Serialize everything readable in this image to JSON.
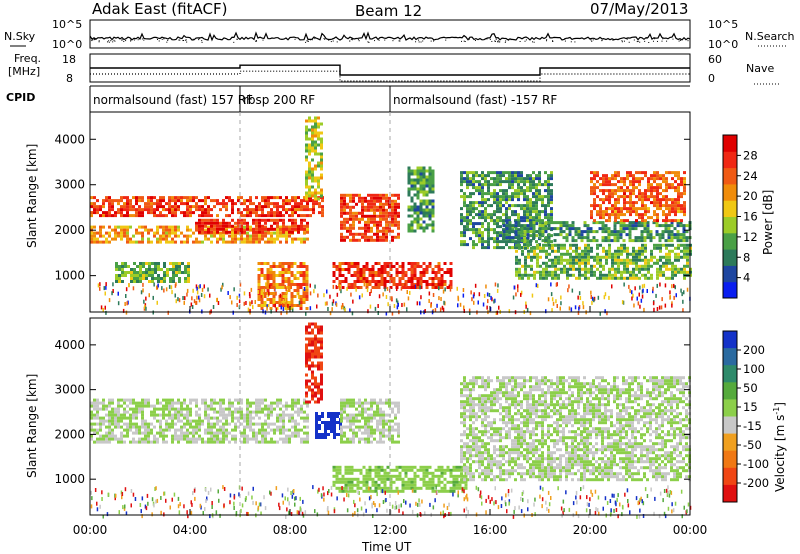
{
  "header": {
    "title": "Adak East (fitACF)",
    "beam": "Beam 12",
    "date": "07/May/2013"
  },
  "noise_panel": {
    "left_label": "N.Sky",
    "right_label": "N.Search",
    "left_ticks": [
      "10^5",
      "10^0"
    ],
    "right_ticks": [
      "10^5",
      "10^0"
    ]
  },
  "freq_panel": {
    "left_label_line1": "Freq.",
    "left_label_line2": "[MHz]",
    "right_label": "Nave",
    "left_ticks": [
      "18",
      "8"
    ],
    "right_ticks": [
      "60",
      "0"
    ]
  },
  "cpid": {
    "label": "CPID",
    "segments": [
      {
        "start_hour": 0,
        "end_hour": 6,
        "label": "normalsound (fast) 157 RF"
      },
      {
        "start_hour": 6,
        "end_hour": 12,
        "label": "rbsp 200 RF"
      },
      {
        "start_hour": 12,
        "end_hour": 24,
        "label": "normalsound (fast) -157 RF"
      }
    ]
  },
  "axes": {
    "ylabel": "Slant Range [km]",
    "xlabel": "Time UT",
    "x_ticks": [
      "00:00",
      "04:00",
      "08:00",
      "12:00",
      "16:00",
      "20:00",
      "00:00"
    ],
    "y_ticks": [
      "1000",
      "2000",
      "3000",
      "4000"
    ]
  },
  "colorbars": {
    "power": {
      "label": "Power [dB]",
      "ticks": [
        "4",
        "8",
        "12",
        "16",
        "20",
        "24",
        "28"
      ],
      "colors": [
        "#0a1ef0",
        "#1e46a0",
        "#2d7a5a",
        "#4aa046",
        "#9ccc28",
        "#f0c814",
        "#f08c0a",
        "#f05a14",
        "#f02814",
        "#e00000"
      ]
    },
    "velocity": {
      "label_main": "Velocity [m s",
      "label_sup": "-1",
      "label_end": "]",
      "ticks": [
        "200",
        "100",
        "50",
        "15",
        "-15",
        "-50",
        "-100",
        "-200"
      ],
      "colors": [
        "#1432c8",
        "#2a6aa0",
        "#2e8a6a",
        "#55aa3c",
        "#8ccf4a",
        "#c8c8c8",
        "#f0a020",
        "#f07814",
        "#f04614",
        "#e01010"
      ]
    }
  },
  "chart_data": {
    "type": "heatmap",
    "x": [
      0,
      24
    ],
    "xlim": [
      0,
      24
    ],
    "ylim": [
      200,
      4600
    ],
    "series": [
      {
        "name": "Power [dB]",
        "clim": [
          0,
          32
        ]
      },
      {
        "name": "Velocity [m s-1]",
        "clim": [
          -250,
          250
        ]
      }
    ],
    "freq_mhz": [
      {
        "start_hour": 0,
        "end_hour": 6,
        "value": 13
      },
      {
        "start_hour": 6,
        "end_hour": 10,
        "value": 14
      },
      {
        "start_hour": 10,
        "end_hour": 18,
        "value": 10.5
      },
      {
        "start_hour": 18,
        "end_hour": 24,
        "value": 13
      }
    ],
    "power_echoes": [
      {
        "t0": 0,
        "t1": 9.3,
        "r0": 2300,
        "r1": 2750,
        "power": 26
      },
      {
        "t0": 0,
        "t1": 8.7,
        "r0": 1750,
        "r1": 2100,
        "power": 20
      },
      {
        "t0": 4.2,
        "t1": 8.7,
        "r0": 1950,
        "r1": 2250,
        "power": 28
      },
      {
        "t0": 6.7,
        "t1": 8.7,
        "r0": 300,
        "r1": 1300,
        "power": 22
      },
      {
        "t0": 1.0,
        "t1": 4.0,
        "r0": 900,
        "r1": 1300,
        "power": 12
      },
      {
        "t0": 8.6,
        "t1": 9.3,
        "r0": 2700,
        "r1": 4500,
        "power": 16
      },
      {
        "t0": 10.0,
        "t1": 12.3,
        "r0": 1800,
        "r1": 2800,
        "power": 26
      },
      {
        "t0": 9.7,
        "t1": 14.5,
        "r0": 750,
        "r1": 1300,
        "power": 27
      },
      {
        "t0": 12.7,
        "t1": 13.7,
        "r0": 2000,
        "r1": 3400,
        "power": 10
      },
      {
        "t0": 14.8,
        "t1": 18.5,
        "r0": 1600,
        "r1": 3300,
        "power": 10
      },
      {
        "t0": 17.0,
        "t1": 24,
        "r0": 950,
        "r1": 1700,
        "power": 12
      },
      {
        "t0": 16.5,
        "t1": 24,
        "r0": 1800,
        "r1": 2200,
        "power": 10
      },
      {
        "t0": 20.0,
        "t1": 23.8,
        "r0": 2200,
        "r1": 3300,
        "power": 24
      }
    ],
    "velocity_echoes": [
      {
        "t0": 0,
        "t1": 8.7,
        "r0": 1800,
        "r1": 2800,
        "velocity": 0
      },
      {
        "t0": 8.6,
        "t1": 9.3,
        "r0": 2700,
        "r1": 4500,
        "velocity": -200
      },
      {
        "t0": 9.0,
        "t1": 10.0,
        "r0": 1950,
        "r1": 2500,
        "velocity": 220
      },
      {
        "t0": 10.0,
        "t1": 12.3,
        "r0": 1800,
        "r1": 2800,
        "velocity": 0
      },
      {
        "t0": 9.7,
        "t1": 15.0,
        "r0": 750,
        "r1": 1300,
        "velocity": 40
      },
      {
        "t0": 14.8,
        "t1": 24,
        "r0": 1000,
        "r1": 3300,
        "velocity": 0
      }
    ]
  }
}
